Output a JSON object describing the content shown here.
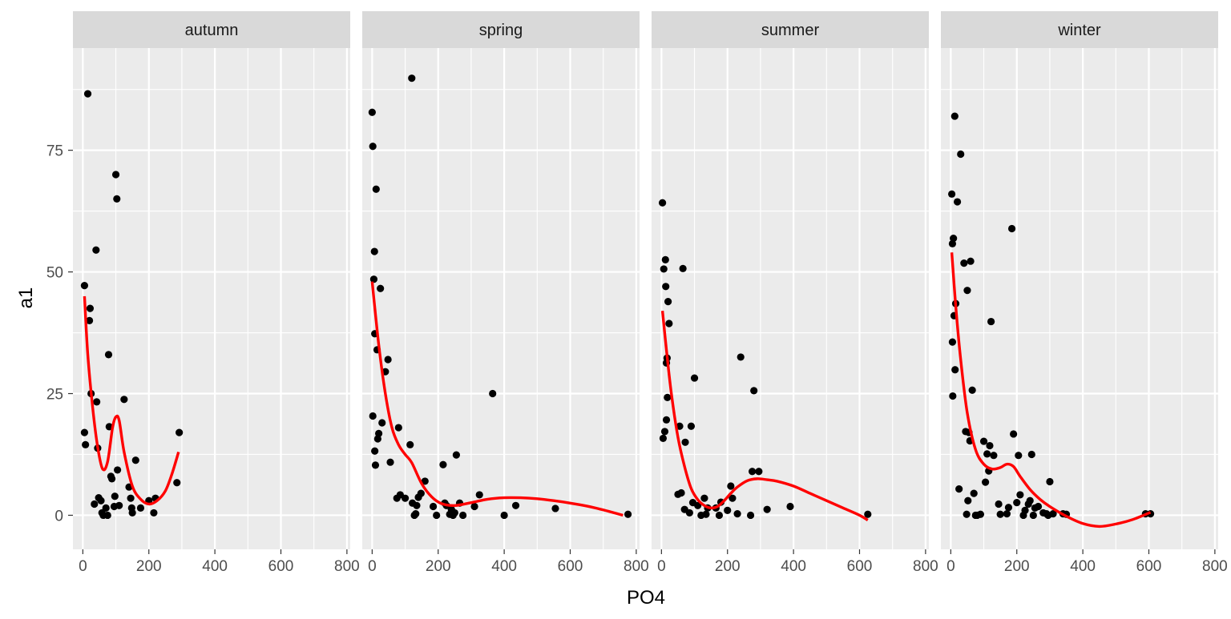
{
  "chart_data": {
    "type": "scatter",
    "xlabel": "PO4",
    "ylabel": "a1",
    "xlim": [
      -30,
      810
    ],
    "ylim": [
      -7,
      96
    ],
    "x_ticks": [
      0,
      200,
      400,
      600,
      800
    ],
    "x_tick_labels": [
      "0",
      "200",
      "400",
      "600",
      "800"
    ],
    "y_ticks": [
      0,
      25,
      50,
      75
    ],
    "y_tick_labels": [
      "0",
      "25",
      "50",
      "75"
    ],
    "grid": true,
    "legend": "none",
    "colors": {
      "panel_bg": "#ebebeb",
      "strip_bg": "#d9d9d9",
      "grid": "#ffffff",
      "point": "#000000",
      "smooth": "#ff0000",
      "axis_text": "#4d4d4d",
      "title_text": "#000000",
      "strip_text": "#1a1a1a"
    },
    "panels": [
      {
        "label": "autumn",
        "points": [
          [
            5,
            47.2
          ],
          [
            5,
            17
          ],
          [
            8,
            14.5
          ],
          [
            15,
            86.6
          ],
          [
            20,
            40
          ],
          [
            22,
            42.5
          ],
          [
            25,
            25
          ],
          [
            35,
            2.3
          ],
          [
            40,
            54.5
          ],
          [
            42,
            23.3
          ],
          [
            45,
            13.8
          ],
          [
            48,
            3.6
          ],
          [
            55,
            3
          ],
          [
            58,
            0.5
          ],
          [
            62,
            0
          ],
          [
            70,
            1.5
          ],
          [
            75,
            0
          ],
          [
            78,
            33
          ],
          [
            80,
            18.2
          ],
          [
            85,
            8
          ],
          [
            88,
            7.5
          ],
          [
            95,
            1.8
          ],
          [
            97,
            3.9
          ],
          [
            100,
            70
          ],
          [
            103,
            65
          ],
          [
            105,
            9.3
          ],
          [
            110,
            2
          ],
          [
            125,
            23.8
          ],
          [
            140,
            5.8
          ],
          [
            145,
            3.5
          ],
          [
            148,
            1.5
          ],
          [
            150,
            0.5
          ],
          [
            160,
            11.3
          ],
          [
            175,
            1.5
          ],
          [
            200,
            3
          ],
          [
            215,
            0.5
          ],
          [
            220,
            3.5
          ],
          [
            285,
            6.7
          ],
          [
            292,
            17
          ]
        ],
        "smooth": [
          [
            5,
            45
          ],
          [
            15,
            33
          ],
          [
            30,
            22
          ],
          [
            45,
            14
          ],
          [
            60,
            9.5
          ],
          [
            75,
            11
          ],
          [
            90,
            18
          ],
          [
            100,
            20.2
          ],
          [
            110,
            19.5
          ],
          [
            125,
            13
          ],
          [
            150,
            6
          ],
          [
            175,
            3.3
          ],
          [
            200,
            2.3
          ],
          [
            225,
            3
          ],
          [
            250,
            5
          ],
          [
            270,
            8.5
          ],
          [
            290,
            13
          ]
        ]
      },
      {
        "label": "spring",
        "points": [
          [
            0,
            82.8
          ],
          [
            2,
            75.8
          ],
          [
            2,
            20.4
          ],
          [
            5,
            48.5
          ],
          [
            7,
            54.2
          ],
          [
            8,
            37.3
          ],
          [
            8,
            13.2
          ],
          [
            10,
            10.3
          ],
          [
            12,
            67
          ],
          [
            15,
            34
          ],
          [
            17,
            15.7
          ],
          [
            20,
            16.8
          ],
          [
            25,
            46.6
          ],
          [
            30,
            19
          ],
          [
            40,
            29.5
          ],
          [
            48,
            32
          ],
          [
            55,
            10.9
          ],
          [
            75,
            3.5
          ],
          [
            80,
            18
          ],
          [
            85,
            4.2
          ],
          [
            100,
            3.5
          ],
          [
            115,
            14.5
          ],
          [
            120,
            89.8
          ],
          [
            122,
            2.5
          ],
          [
            128,
            0
          ],
          [
            132,
            0.3
          ],
          [
            135,
            2
          ],
          [
            140,
            3.7
          ],
          [
            148,
            4.5
          ],
          [
            160,
            7
          ],
          [
            185,
            1.8
          ],
          [
            195,
            0
          ],
          [
            215,
            10.4
          ],
          [
            220,
            2.5
          ],
          [
            225,
            2
          ],
          [
            235,
            0.2
          ],
          [
            240,
            1.2
          ],
          [
            245,
            0
          ],
          [
            250,
            0.5
          ],
          [
            255,
            12.4
          ],
          [
            265,
            2.5
          ],
          [
            275,
            0
          ],
          [
            310,
            1.8
          ],
          [
            325,
            4.2
          ],
          [
            365,
            25
          ],
          [
            400,
            0
          ],
          [
            435,
            2
          ],
          [
            555,
            1.4
          ],
          [
            775,
            0.2
          ]
        ],
        "smooth": [
          [
            0,
            48
          ],
          [
            20,
            35
          ],
          [
            40,
            25
          ],
          [
            60,
            18
          ],
          [
            80,
            14.5
          ],
          [
            100,
            12.5
          ],
          [
            120,
            10.8
          ],
          [
            150,
            6.5
          ],
          [
            180,
            3.8
          ],
          [
            210,
            2.4
          ],
          [
            250,
            2
          ],
          [
            300,
            2.6
          ],
          [
            350,
            3.3
          ],
          [
            400,
            3.6
          ],
          [
            450,
            3.6
          ],
          [
            500,
            3.4
          ],
          [
            550,
            3
          ],
          [
            600,
            2.5
          ],
          [
            650,
            1.9
          ],
          [
            700,
            1.1
          ],
          [
            760,
            0
          ]
        ]
      },
      {
        "label": "summer",
        "points": [
          [
            3,
            64.2
          ],
          [
            5,
            15.8
          ],
          [
            7,
            50.6
          ],
          [
            10,
            17.2
          ],
          [
            12,
            52.5
          ],
          [
            13,
            47
          ],
          [
            15,
            19.6
          ],
          [
            15,
            31.3
          ],
          [
            17,
            32.3
          ],
          [
            18,
            24.2
          ],
          [
            20,
            43.9
          ],
          [
            23,
            39.4
          ],
          [
            50,
            4.3
          ],
          [
            55,
            18.3
          ],
          [
            60,
            4.6
          ],
          [
            65,
            50.7
          ],
          [
            70,
            1.2
          ],
          [
            72,
            15
          ],
          [
            85,
            0.5
          ],
          [
            90,
            18.3
          ],
          [
            95,
            2.6
          ],
          [
            100,
            28.2
          ],
          [
            110,
            2
          ],
          [
            120,
            0
          ],
          [
            130,
            3.5
          ],
          [
            135,
            0.2
          ],
          [
            140,
            1.5
          ],
          [
            165,
            1.5
          ],
          [
            175,
            0
          ],
          [
            180,
            2.7
          ],
          [
            200,
            1
          ],
          [
            210,
            6
          ],
          [
            215,
            3.5
          ],
          [
            230,
            0.3
          ],
          [
            240,
            32.5
          ],
          [
            270,
            0
          ],
          [
            275,
            9
          ],
          [
            280,
            25.6
          ],
          [
            295,
            9
          ],
          [
            320,
            1.2
          ],
          [
            390,
            1.8
          ],
          [
            625,
            0.2
          ]
        ],
        "smooth": [
          [
            3,
            42
          ],
          [
            15,
            34
          ],
          [
            30,
            25
          ],
          [
            50,
            16
          ],
          [
            70,
            10
          ],
          [
            90,
            5.5
          ],
          [
            110,
            3.2
          ],
          [
            130,
            2
          ],
          [
            150,
            1.5
          ],
          [
            170,
            1.8
          ],
          [
            190,
            3
          ],
          [
            210,
            4.5
          ],
          [
            230,
            5.8
          ],
          [
            260,
            7.1
          ],
          [
            290,
            7.5
          ],
          [
            320,
            7.3
          ],
          [
            350,
            7
          ],
          [
            400,
            6
          ],
          [
            450,
            4.5
          ],
          [
            500,
            3
          ],
          [
            550,
            1.5
          ],
          [
            600,
            0
          ],
          [
            625,
            -1
          ]
        ]
      },
      {
        "label": "winter",
        "points": [
          [
            3,
            66
          ],
          [
            5,
            55.8
          ],
          [
            5,
            35.6
          ],
          [
            6,
            24.5
          ],
          [
            8,
            56.9
          ],
          [
            10,
            41
          ],
          [
            12,
            82
          ],
          [
            13,
            29.9
          ],
          [
            15,
            43.5
          ],
          [
            20,
            64.4
          ],
          [
            25,
            5.4
          ],
          [
            30,
            74.2
          ],
          [
            40,
            51.8
          ],
          [
            45,
            17.2
          ],
          [
            48,
            0.2
          ],
          [
            50,
            46.2
          ],
          [
            52,
            3
          ],
          [
            55,
            17
          ],
          [
            58,
            15.3
          ],
          [
            60,
            52.2
          ],
          [
            65,
            25.7
          ],
          [
            70,
            4.5
          ],
          [
            75,
            0
          ],
          [
            80,
            0
          ],
          [
            90,
            0.2
          ],
          [
            100,
            15.2
          ],
          [
            105,
            6.8
          ],
          [
            110,
            12.6
          ],
          [
            115,
            9.1
          ],
          [
            118,
            14.3
          ],
          [
            122,
            39.8
          ],
          [
            130,
            12.3
          ],
          [
            145,
            2.3
          ],
          [
            150,
            0.2
          ],
          [
            170,
            0.3
          ],
          [
            175,
            1.6
          ],
          [
            185,
            58.9
          ],
          [
            190,
            16.7
          ],
          [
            200,
            2.6
          ],
          [
            205,
            12.3
          ],
          [
            210,
            4.2
          ],
          [
            220,
            0
          ],
          [
            225,
            1
          ],
          [
            235,
            2.3
          ],
          [
            240,
            3
          ],
          [
            245,
            12.5
          ],
          [
            250,
            0
          ],
          [
            255,
            1.5
          ],
          [
            265,
            1.8
          ],
          [
            280,
            0.5
          ],
          [
            290,
            0.3
          ],
          [
            295,
            0
          ],
          [
            300,
            6.9
          ],
          [
            310,
            0.3
          ],
          [
            340,
            0.3
          ],
          [
            350,
            0.2
          ],
          [
            590,
            0.3
          ],
          [
            605,
            0.3
          ]
        ],
        "smooth": [
          [
            3,
            54
          ],
          [
            15,
            43
          ],
          [
            30,
            32
          ],
          [
            50,
            21
          ],
          [
            75,
            13.5
          ],
          [
            100,
            10.5
          ],
          [
            125,
            9.5
          ],
          [
            150,
            9.8
          ],
          [
            170,
            10.5
          ],
          [
            190,
            10
          ],
          [
            210,
            8
          ],
          [
            240,
            5.3
          ],
          [
            270,
            3.3
          ],
          [
            300,
            1.8
          ],
          [
            350,
            -0.2
          ],
          [
            400,
            -1.7
          ],
          [
            450,
            -2.3
          ],
          [
            500,
            -1.8
          ],
          [
            550,
            -0.9
          ],
          [
            605,
            0.6
          ]
        ]
      }
    ]
  }
}
